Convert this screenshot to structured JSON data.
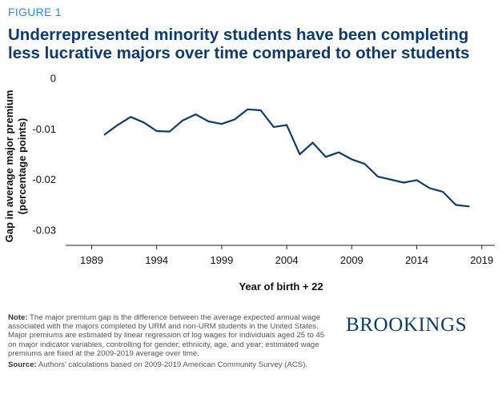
{
  "figure_label": "FIGURE 1",
  "title_lines": [
    "Underrepresented minority students have been completing",
    "less lucrative majors over time compared to other students"
  ],
  "note": {
    "label": "Note:",
    "text": "The major premium gap is the difference between the average expected annual wage associated with the majors completed by URM and non-URM students in the United States. Major premiums are estimated by linear regression of log wages for individuals aged 25 to 45 on major indicator variables, controlling for gender, ethnicity, age, and year; estimated wage premiums are fixed at the 2009-2019 average over time."
  },
  "source": {
    "label": "Source:",
    "text": "Authors' calculations based on 2009-2019 American Community Survey (ACS)."
  },
  "brand": "BROOKINGS",
  "colors": {
    "line": "#0d3b6e",
    "title": "#0d3b6e",
    "figure_label": "#1f8fd6"
  },
  "chart_data": {
    "type": "line",
    "xlabel": "Year of birth + 22",
    "ylabel_lines": [
      "Gap in average major premium",
      "(percentage points)"
    ],
    "xlim": [
      1987,
      2020
    ],
    "ylim": [
      -0.033,
      0.0005
    ],
    "xticks": [
      1989,
      1994,
      1999,
      2004,
      2009,
      2014,
      2019
    ],
    "yticks": [
      0,
      -0.01,
      -0.02,
      -0.03
    ],
    "ytick_labels": [
      "0",
      "-0.01",
      "-0.02",
      "-0.03"
    ],
    "grid": false,
    "series": [
      {
        "x": [
          1990,
          1991,
          1992,
          1993,
          1994,
          1995,
          1996,
          1997,
          1998,
          1999,
          2000,
          2001,
          2002,
          2003,
          2004,
          2005,
          2006,
          2007,
          2008,
          2009,
          2010,
          2011,
          2012,
          2013,
          2014,
          2015,
          2016,
          2017,
          2018
        ],
        "y": [
          -0.0111,
          -0.0092,
          -0.0076,
          -0.0087,
          -0.0104,
          -0.0105,
          -0.0083,
          -0.0071,
          -0.0085,
          -0.009,
          -0.0081,
          -0.0061,
          -0.0063,
          -0.0096,
          -0.0092,
          -0.015,
          -0.0127,
          -0.0155,
          -0.0146,
          -0.016,
          -0.0169,
          -0.0194,
          -0.02,
          -0.0206,
          -0.0201,
          -0.0217,
          -0.0224,
          -0.025,
          -0.0253
        ]
      }
    ]
  }
}
